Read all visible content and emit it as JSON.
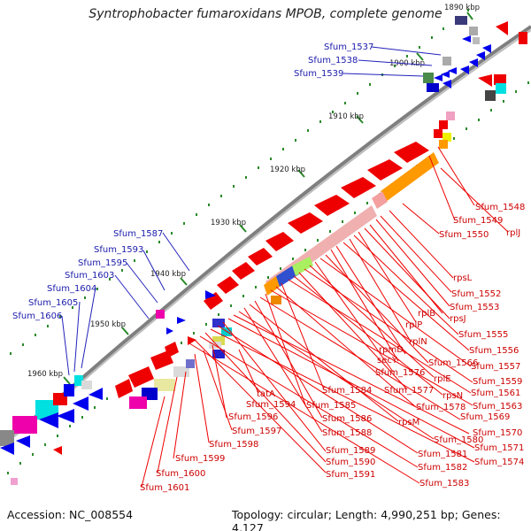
{
  "title": "Syntrophobacter fumaroxidans MPOB, complete genome",
  "footer": {
    "accession": "Accession: NC_008554",
    "topology": "Topology: circular; Length: 4,990,251 bp; Genes: 4,127"
  },
  "colors": {
    "backbone": "#808080",
    "forward_strand": "#0000ee",
    "reverse_strand": "#ee0000",
    "tick": "#2a8a2a",
    "blue_label": "#1a1aaa",
    "red_label": "#cc0000"
  },
  "scale_ticks": [
    "1890 kbp",
    "1900 kbp",
    "1910 kbp",
    "1920 kbp",
    "1930 kbp",
    "1940 kbp",
    "1950 kbp",
    "1960 kbp"
  ],
  "blue_labels": [
    "Sfum_1537",
    "Sfum_1538",
    "Sfum_1539",
    "Sfum_1587",
    "Sfum_1593",
    "Sfum_1595",
    "Sfum_1603",
    "Sfum_1604",
    "Sfum_1605",
    "Sfum_1606"
  ],
  "red_labels": [
    "Sfum_1548",
    "Sfum_1549",
    "Sfum_1550",
    "rplJ",
    "rpsL",
    "Sfum_1552",
    "Sfum_1553",
    "rplB",
    "rpsJ",
    "rplP",
    "Sfum_1555",
    "rplN",
    "Sfum_1556",
    "rpmD",
    "secY",
    "Sfum_1566",
    "Sfum_1557",
    "Sfum_1576",
    "rplE",
    "Sfum_1559",
    "Sfum_1577",
    "rpsN",
    "Sfum_1561",
    "tatA",
    "Sfum_1584",
    "Sfum_1578",
    "Sfum_1563",
    "Sfum_1594",
    "Sfum_1585",
    "Sfum_1569",
    "Sfum_1596",
    "Sfum_1586",
    "rpsM",
    "Sfum_1597",
    "Sfum_1588",
    "Sfum_1580",
    "Sfum_1570",
    "Sfum_1598",
    "Sfum_1571",
    "Sfum_1589",
    "Sfum_1581",
    "Sfum_1574",
    "Sfum_1599",
    "Sfum_1590",
    "Sfum_1582",
    "Sfum_1600",
    "Sfum_1591",
    "Sfum_1583",
    "Sfum_1601"
  ]
}
